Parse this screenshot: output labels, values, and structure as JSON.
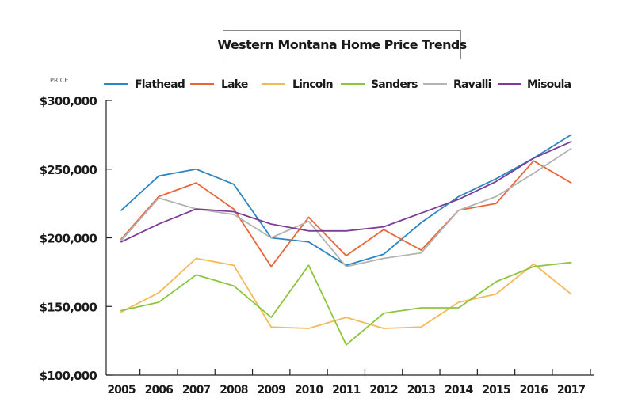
{
  "chart_data": {
    "type": "line",
    "title": "Western Montana Home Price Trends",
    "ylabel": "PRICE",
    "xlabel": "",
    "categories": [
      "2005",
      "2006",
      "2007",
      "2008",
      "2009",
      "2010",
      "2011",
      "2012",
      "2013",
      "2014",
      "2015",
      "2016",
      "2017"
    ],
    "ylim": [
      100000,
      300000
    ],
    "yticks": [
      100000,
      150000,
      200000,
      250000,
      300000
    ],
    "ytick_labels": [
      "$100,000",
      "$150,000",
      "$200,000",
      "$250,000",
      "$300,000"
    ],
    "legend_position": "top",
    "grid": false,
    "series": [
      {
        "name": "Flathead",
        "color": "#2e86c1",
        "values": [
          220000,
          245000,
          250000,
          239000,
          200000,
          197000,
          180000,
          188000,
          211000,
          230000,
          243000,
          258000,
          275000
        ]
      },
      {
        "name": "Lake",
        "color": "#e8673a",
        "values": [
          199000,
          230000,
          240000,
          221000,
          179000,
          215000,
          187000,
          206000,
          191000,
          220000,
          225000,
          256000,
          240000
        ]
      },
      {
        "name": "Lincoln",
        "color": "#f4b95a",
        "values": [
          146000,
          160000,
          185000,
          180000,
          135000,
          134000,
          142000,
          134000,
          135000,
          153000,
          159000,
          181000,
          159000
        ]
      },
      {
        "name": "Sanders",
        "color": "#8cc63f",
        "values": [
          147000,
          153000,
          173000,
          165000,
          142000,
          180000,
          122000,
          145000,
          149000,
          149000,
          168000,
          179000,
          182000
        ]
      },
      {
        "name": "Ravalli",
        "color": "#b3b3b3",
        "values": [
          198000,
          229000,
          221000,
          217000,
          200000,
          212000,
          179000,
          185000,
          189000,
          220000,
          230000,
          247000,
          265000
        ]
      },
      {
        "name": "Misoula",
        "color": "#7d3c98",
        "values": [
          197000,
          210000,
          221000,
          219000,
          210000,
          205000,
          205000,
          208000,
          218000,
          228000,
          241000,
          258000,
          270000
        ]
      }
    ]
  }
}
